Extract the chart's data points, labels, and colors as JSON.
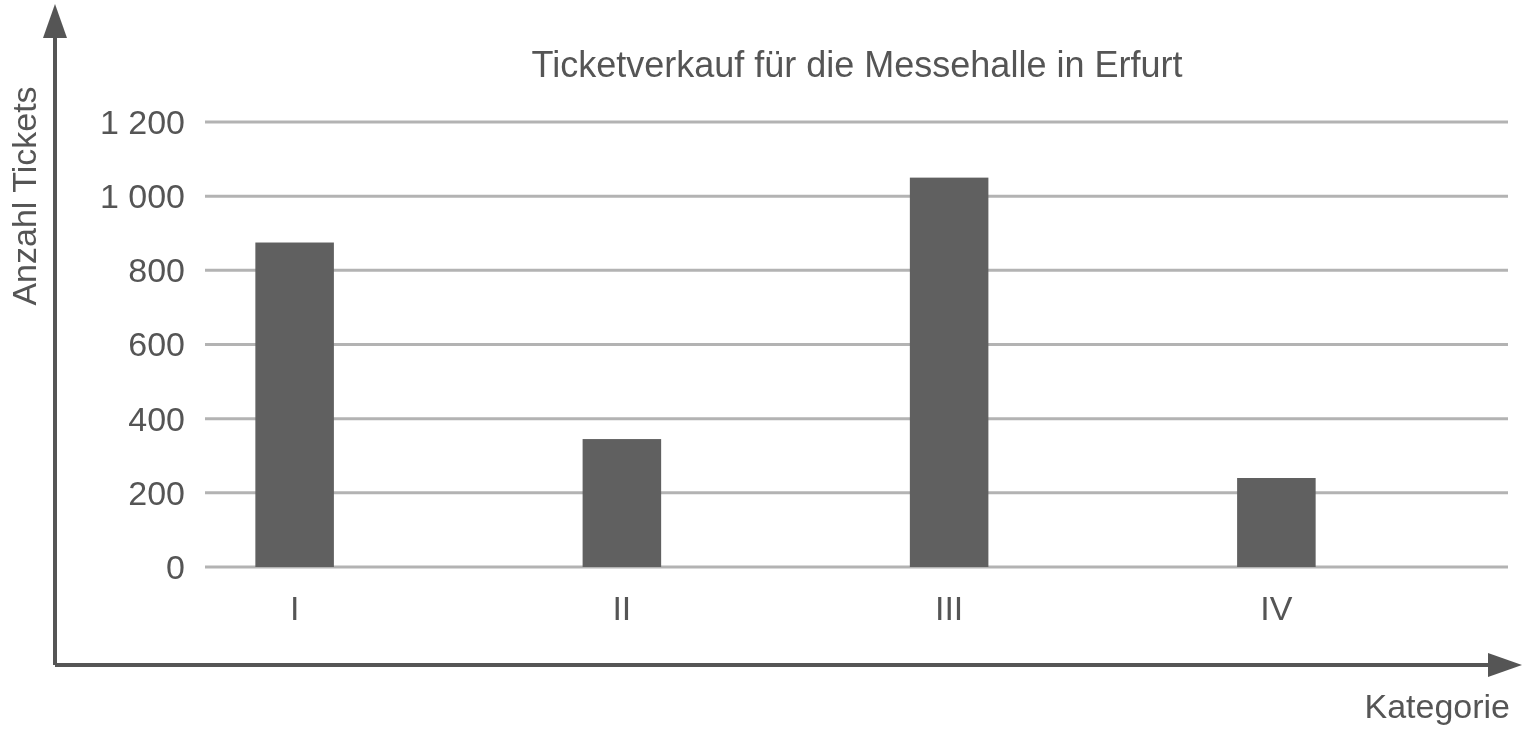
{
  "chart_data": {
    "type": "bar",
    "title": "Ticketverkauf für die Messehalle in Erfurt",
    "xlabel": "Kategorie",
    "ylabel": "Anzahl Tickets",
    "categories": [
      "I",
      "II",
      "III",
      "IV"
    ],
    "values": [
      875,
      345,
      1050,
      240
    ],
    "color": "#606060",
    "ylim": [
      0,
      1200
    ],
    "yticks": [
      0,
      200,
      400,
      600,
      800,
      {
        "value": 1000,
        "label": "1 000"
      },
      {
        "value": 1200,
        "label": "1 200"
      }
    ],
    "grid": "y"
  }
}
